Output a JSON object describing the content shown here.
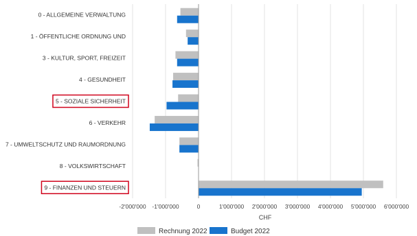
{
  "chart_data": {
    "type": "bar",
    "orientation": "horizontal",
    "categories": [
      "0 - ALLGEMEINE VERWALTUNG",
      "1 - ÖFFENTLICHE ORDNUNG UND",
      "3 - KULTUR, SPORT, FREIZEIT",
      "4 - GESUNDHEIT",
      "5 - SOZIALE SICHERHEIT",
      "6 - VERKEHR",
      "7 - UMWELTSCHUTZ UND RAUMORDNUNG",
      "8 - VOLKSWIRTSCHAFT",
      "9 - FINANZEN UND STEUERN"
    ],
    "highlighted_categories": [
      "5 - SOZIALE SICHERHEIT",
      "9 - FINANZEN UND STEUERN"
    ],
    "series": [
      {
        "name": "Rechnung 2022",
        "color": "#c0c0c0",
        "values": [
          -550000,
          -380000,
          -700000,
          -770000,
          -620000,
          -1330000,
          -580000,
          -30000,
          5600000
        ]
      },
      {
        "name": "Budget 2022",
        "color": "#1874cd",
        "values": [
          -650000,
          -330000,
          -650000,
          -790000,
          -970000,
          -1480000,
          -580000,
          0,
          4950000
        ]
      }
    ],
    "xlabel": "CHF",
    "xlim": [
      -2000000,
      6000000
    ],
    "xticks": [
      -2000000,
      -1000000,
      0,
      1000000,
      2000000,
      3000000,
      4000000,
      5000000,
      6000000
    ],
    "xtick_labels": [
      "-2'000'000",
      "-1'000'000",
      "0",
      "1'000'000",
      "2'000'000",
      "3'000'000",
      "4'000'000",
      "5'000'000",
      "6'000'000"
    ],
    "grid": true,
    "legend": "bottom",
    "highlight_color": "#d0021b"
  }
}
